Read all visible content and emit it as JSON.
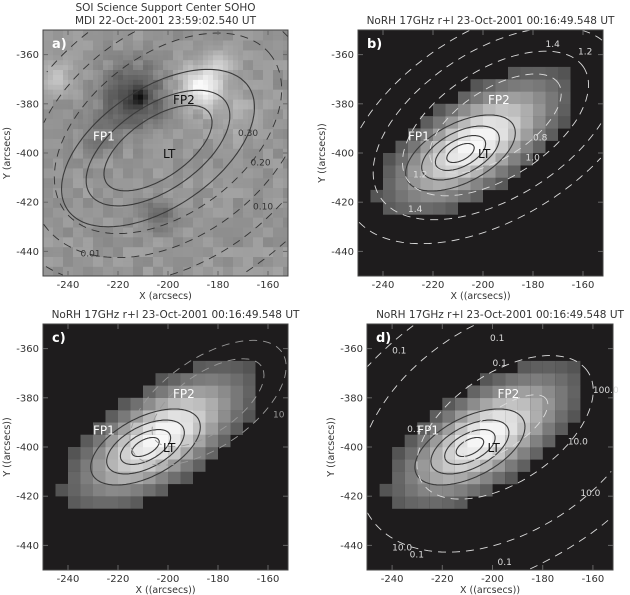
{
  "chart_data": [
    {
      "type": "heatmap",
      "panel_label": "a)",
      "title_lines": [
        "SOI Science Support Center SOHO",
        "MDI 22-Oct-2001 23:59:02.540 UT"
      ],
      "xlabel": "X (arcsecs)",
      "ylabel": "Y (arcsecs)",
      "xlim": [
        -250,
        -152
      ],
      "ylim": [
        -450,
        -350
      ],
      "xticks": [
        -240,
        -220,
        -200,
        -180,
        -160
      ],
      "yticks": [
        -360,
        -380,
        -400,
        -420,
        -440
      ],
      "background": "grayscale magnetogram",
      "annotations": [
        "FP1",
        "FP2",
        "LT"
      ],
      "contour_labels": [
        "0.30",
        "0.20",
        "0.10",
        "0.01"
      ]
    },
    {
      "type": "heatmap",
      "panel_label": "b)",
      "title_lines": [
        "NoRH 17GHz r+l 23-Oct-2001 00:16:49.548 UT"
      ],
      "xlabel": "X ((arcsecs))",
      "ylabel": "Y ((arcsecs))",
      "xlim": [
        -250,
        -152
      ],
      "ylim": [
        -450,
        -350
      ],
      "xticks": [
        -240,
        -220,
        -200,
        -180,
        -160
      ],
      "yticks": [
        -360,
        -380,
        -400,
        -420,
        -440
      ],
      "annotations": [
        "FP1",
        "FP2",
        "LT"
      ],
      "contour_labels": [
        "1.4",
        "1.2",
        "0.8",
        "1.0",
        "1.2",
        "1.4"
      ]
    },
    {
      "type": "heatmap",
      "panel_label": "c)",
      "title_lines": [
        "NoRH 17GHz r+l 23-Oct-2001 00:16:49.548 UT"
      ],
      "xlabel": "X ((arcsecs))",
      "ylabel": "Y ((arcsecs))",
      "xlim": [
        -250,
        -152
      ],
      "ylim": [
        -450,
        -350
      ],
      "xticks": [
        -240,
        -220,
        -200,
        -180,
        -160
      ],
      "yticks": [
        -360,
        -380,
        -400,
        -420,
        -440
      ],
      "annotations": [
        "FP1",
        "FP2",
        "LT"
      ],
      "contour_labels": [
        "10"
      ]
    },
    {
      "type": "heatmap",
      "panel_label": "d)",
      "title_lines": [
        "NoRH 17GHz r+l 23-Oct-2001 00:16:49.548 UT"
      ],
      "xlabel": "X ((arcsecs))",
      "ylabel": "Y ((arcsecs))",
      "xlim": [
        -250,
        -152
      ],
      "ylim": [
        -450,
        -350
      ],
      "xticks": [
        -240,
        -220,
        -200,
        -180,
        -160
      ],
      "yticks": [
        -360,
        -380,
        -400,
        -420,
        -440
      ],
      "annotations": [
        "FP1",
        "FP2",
        "LT"
      ],
      "contour_labels": [
        "0.1",
        "0.1",
        "0.1",
        "0.1",
        "100.0",
        "10.0",
        "10.0",
        "10.0",
        "0.1",
        "0.1"
      ]
    }
  ]
}
